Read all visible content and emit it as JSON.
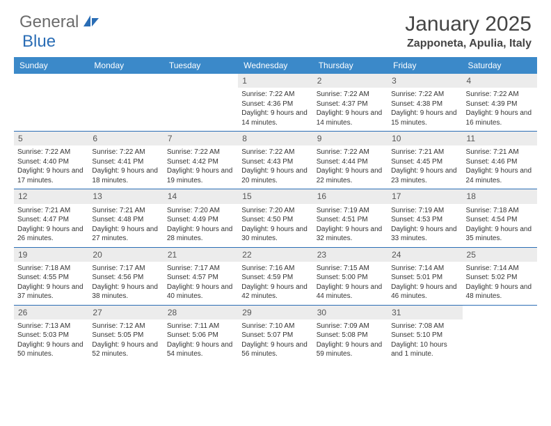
{
  "logo": {
    "text1": "General",
    "text2": "Blue"
  },
  "title": "January 2025",
  "location": "Zapponeta, Apulia, Italy",
  "colors": {
    "header_bg": "#3b89c9",
    "week_border": "#2a6db5",
    "daynum_bg": "#ececec",
    "logo_gray": "#6b6b6b",
    "logo_blue": "#2a6db5"
  },
  "dayHeaders": [
    "Sunday",
    "Monday",
    "Tuesday",
    "Wednesday",
    "Thursday",
    "Friday",
    "Saturday"
  ],
  "weeks": [
    [
      null,
      null,
      null,
      {
        "n": "1",
        "sr": "7:22 AM",
        "ss": "4:36 PM",
        "dl": "9 hours and 14 minutes."
      },
      {
        "n": "2",
        "sr": "7:22 AM",
        "ss": "4:37 PM",
        "dl": "9 hours and 14 minutes."
      },
      {
        "n": "3",
        "sr": "7:22 AM",
        "ss": "4:38 PM",
        "dl": "9 hours and 15 minutes."
      },
      {
        "n": "4",
        "sr": "7:22 AM",
        "ss": "4:39 PM",
        "dl": "9 hours and 16 minutes."
      }
    ],
    [
      {
        "n": "5",
        "sr": "7:22 AM",
        "ss": "4:40 PM",
        "dl": "9 hours and 17 minutes."
      },
      {
        "n": "6",
        "sr": "7:22 AM",
        "ss": "4:41 PM",
        "dl": "9 hours and 18 minutes."
      },
      {
        "n": "7",
        "sr": "7:22 AM",
        "ss": "4:42 PM",
        "dl": "9 hours and 19 minutes."
      },
      {
        "n": "8",
        "sr": "7:22 AM",
        "ss": "4:43 PM",
        "dl": "9 hours and 20 minutes."
      },
      {
        "n": "9",
        "sr": "7:22 AM",
        "ss": "4:44 PM",
        "dl": "9 hours and 22 minutes."
      },
      {
        "n": "10",
        "sr": "7:21 AM",
        "ss": "4:45 PM",
        "dl": "9 hours and 23 minutes."
      },
      {
        "n": "11",
        "sr": "7:21 AM",
        "ss": "4:46 PM",
        "dl": "9 hours and 24 minutes."
      }
    ],
    [
      {
        "n": "12",
        "sr": "7:21 AM",
        "ss": "4:47 PM",
        "dl": "9 hours and 26 minutes."
      },
      {
        "n": "13",
        "sr": "7:21 AM",
        "ss": "4:48 PM",
        "dl": "9 hours and 27 minutes."
      },
      {
        "n": "14",
        "sr": "7:20 AM",
        "ss": "4:49 PM",
        "dl": "9 hours and 28 minutes."
      },
      {
        "n": "15",
        "sr": "7:20 AM",
        "ss": "4:50 PM",
        "dl": "9 hours and 30 minutes."
      },
      {
        "n": "16",
        "sr": "7:19 AM",
        "ss": "4:51 PM",
        "dl": "9 hours and 32 minutes."
      },
      {
        "n": "17",
        "sr": "7:19 AM",
        "ss": "4:53 PM",
        "dl": "9 hours and 33 minutes."
      },
      {
        "n": "18",
        "sr": "7:18 AM",
        "ss": "4:54 PM",
        "dl": "9 hours and 35 minutes."
      }
    ],
    [
      {
        "n": "19",
        "sr": "7:18 AM",
        "ss": "4:55 PM",
        "dl": "9 hours and 37 minutes."
      },
      {
        "n": "20",
        "sr": "7:17 AM",
        "ss": "4:56 PM",
        "dl": "9 hours and 38 minutes."
      },
      {
        "n": "21",
        "sr": "7:17 AM",
        "ss": "4:57 PM",
        "dl": "9 hours and 40 minutes."
      },
      {
        "n": "22",
        "sr": "7:16 AM",
        "ss": "4:59 PM",
        "dl": "9 hours and 42 minutes."
      },
      {
        "n": "23",
        "sr": "7:15 AM",
        "ss": "5:00 PM",
        "dl": "9 hours and 44 minutes."
      },
      {
        "n": "24",
        "sr": "7:14 AM",
        "ss": "5:01 PM",
        "dl": "9 hours and 46 minutes."
      },
      {
        "n": "25",
        "sr": "7:14 AM",
        "ss": "5:02 PM",
        "dl": "9 hours and 48 minutes."
      }
    ],
    [
      {
        "n": "26",
        "sr": "7:13 AM",
        "ss": "5:03 PM",
        "dl": "9 hours and 50 minutes."
      },
      {
        "n": "27",
        "sr": "7:12 AM",
        "ss": "5:05 PM",
        "dl": "9 hours and 52 minutes."
      },
      {
        "n": "28",
        "sr": "7:11 AM",
        "ss": "5:06 PM",
        "dl": "9 hours and 54 minutes."
      },
      {
        "n": "29",
        "sr": "7:10 AM",
        "ss": "5:07 PM",
        "dl": "9 hours and 56 minutes."
      },
      {
        "n": "30",
        "sr": "7:09 AM",
        "ss": "5:08 PM",
        "dl": "9 hours and 59 minutes."
      },
      {
        "n": "31",
        "sr": "7:08 AM",
        "ss": "5:10 PM",
        "dl": "10 hours and 1 minute."
      },
      null
    ]
  ],
  "labels": {
    "sunrise": "Sunrise:",
    "sunset": "Sunset:",
    "daylight": "Daylight:"
  }
}
